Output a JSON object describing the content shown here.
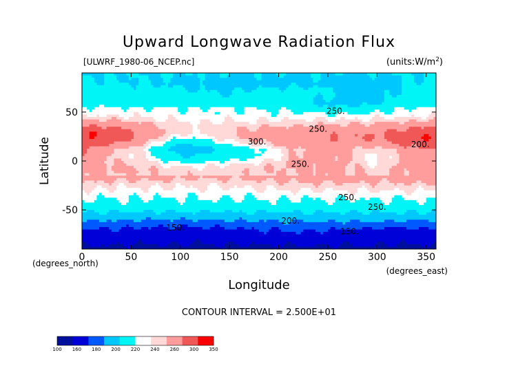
{
  "chart_data": {
    "type": "heatmap",
    "title": "Upward Longwave Radiation Flux",
    "subtitle_left": "[ULWRF_1980-06_NCEP.nc]",
    "subtitle_right": "(units:W/m^2)",
    "xlabel": "Longitude",
    "ylabel": "Latitude",
    "x_unit_label": "(degrees_east)",
    "y_unit_label": "(degrees_north)",
    "xlim": [
      0,
      360
    ],
    "ylim": [
      -90,
      90
    ],
    "x_ticks": [
      0,
      50,
      100,
      150,
      200,
      250,
      300,
      350
    ],
    "y_ticks": [
      -50,
      0,
      50
    ],
    "contour_interval_text": "CONTOUR INTERVAL = 2.500E+01",
    "contour_labels": [
      "250.",
      "300.",
      "250.",
      "250.",
      "250.",
      "250.",
      "200.",
      "200.",
      "150.",
      "150."
    ],
    "colorbar": {
      "labels": [
        "100",
        "160",
        "180",
        "200",
        "220",
        "240",
        "260",
        "300",
        "350"
      ],
      "bins": [
        {
          "from": 100,
          "to": 150,
          "color": "#000f9c"
        },
        {
          "from": 150,
          "to": 175,
          "color": "#0000d8"
        },
        {
          "from": 175,
          "to": 200,
          "color": "#0058ff"
        },
        {
          "from": 200,
          "to": 225,
          "color": "#00c8ff"
        },
        {
          "from": 225,
          "to": 250,
          "color": "#00f6f6"
        },
        {
          "from": 250,
          "to": 262.5,
          "color": "#ffffff"
        },
        {
          "from": 262.5,
          "to": 275,
          "color": "#ffd8d8"
        },
        {
          "from": 275,
          "to": 300,
          "color": "#ff9c9c"
        },
        {
          "from": 300,
          "to": 325,
          "color": "#f05858"
        },
        {
          "from": 325,
          "to": 350,
          "color": "#ff0000"
        }
      ]
    }
  }
}
